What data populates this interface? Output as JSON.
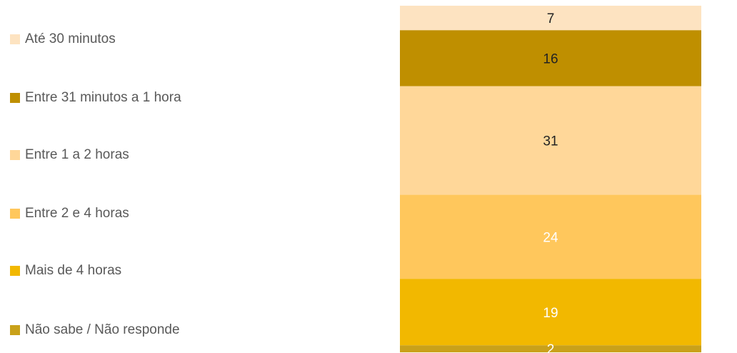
{
  "chart_data": {
    "type": "stacked_bar",
    "ylim": [
      0,
      100
    ],
    "series": [
      {
        "name": "Até 30 minutos",
        "color": "#fde3c1",
        "label_color": "#222222",
        "values": [
          7
        ]
      },
      {
        "name": "Entre 31 minutos a 1 hora",
        "color": "#bf8f00",
        "label_color": "#222222",
        "values": [
          16
        ]
      },
      {
        "name": "Entre 1 a 2 horas",
        "color": "#ffd799",
        "label_color": "#222222",
        "values": [
          31
        ]
      },
      {
        "name": "Entre 2 e 4 horas",
        "color": "#ffc75c",
        "label_color": "#ffffff",
        "values": [
          24
        ]
      },
      {
        "name": "Mais de 4 horas",
        "color": "#f2b800",
        "label_color": "#ffffff",
        "values": [
          19
        ]
      },
      {
        "name": "Não sabe / Não responde",
        "color": "#c9a11a",
        "label_color": "#ffffff",
        "values": [
          2
        ]
      }
    ]
  }
}
